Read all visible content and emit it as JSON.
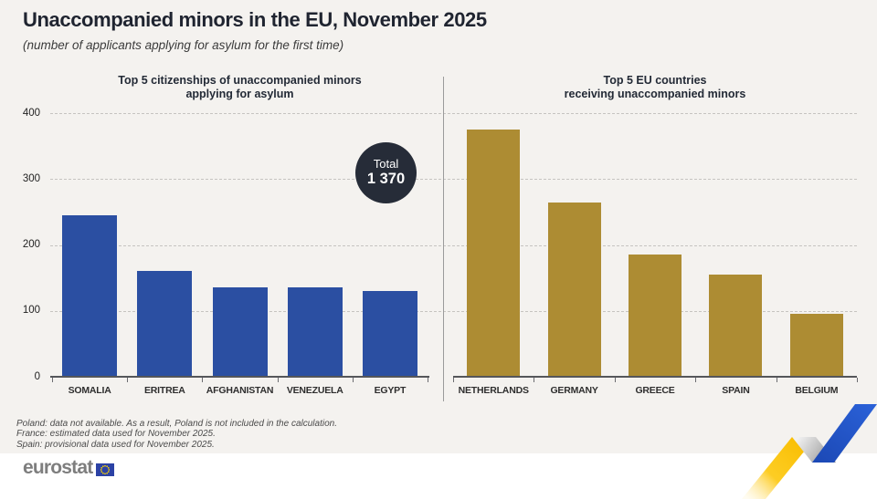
{
  "header": {
    "title": "Unaccompanied minors in the EU, November 2025",
    "subtitle": "(number of applicants applying for asylum for the first time)"
  },
  "total_badge": {
    "label": "Total",
    "value": "1 370"
  },
  "axis": {
    "ticks": [
      400,
      300,
      200,
      100,
      0
    ],
    "max": 400
  },
  "chart_data": [
    {
      "type": "bar",
      "title": "Top 5 citizenships of unaccompanied minors applying for asylum",
      "title_lines": [
        "Top 5 citizenships of unaccompanied minors",
        "applying for asylum"
      ],
      "categories": [
        "SOMALIA",
        "ERITREA",
        "AFGHANISTAN",
        "VENEZUELA",
        "EGYPT"
      ],
      "values": [
        245,
        160,
        135,
        135,
        130
      ],
      "bar_color": "#2b4fa2",
      "ylim": [
        0,
        400
      ],
      "ylabel": "",
      "legend": "none",
      "grid": "dashed horizontal"
    },
    {
      "type": "bar",
      "title": "Top 5 EU countries receiving unaccompanied minors",
      "title_lines": [
        "Top 5 EU countries",
        "receiving unaccompanied minors"
      ],
      "categories": [
        "NETHERLANDS",
        "GERMANY",
        "GREECE",
        "SPAIN",
        "BELGIUM"
      ],
      "values": [
        375,
        265,
        185,
        155,
        95
      ],
      "bar_color": "#ad8c33",
      "ylim": [
        0,
        400
      ],
      "ylabel": "",
      "legend": "none",
      "grid": "dashed horizontal"
    }
  ],
  "footnotes": [
    "Poland: data not available. As a result, Poland is not included in the calculation.",
    "France: estimated data used for November 2025.",
    "Spain: provisional data used for November 2025."
  ],
  "footer": {
    "logo_text": "eurostat"
  },
  "colors": {
    "background": "#f4f2ef",
    "blue_bar": "#2b4fa2",
    "gold_bar": "#ad8c33",
    "badge": "#262c38",
    "ribbon_yellow": "#fdc500",
    "ribbon_blue": "#2457c8"
  }
}
